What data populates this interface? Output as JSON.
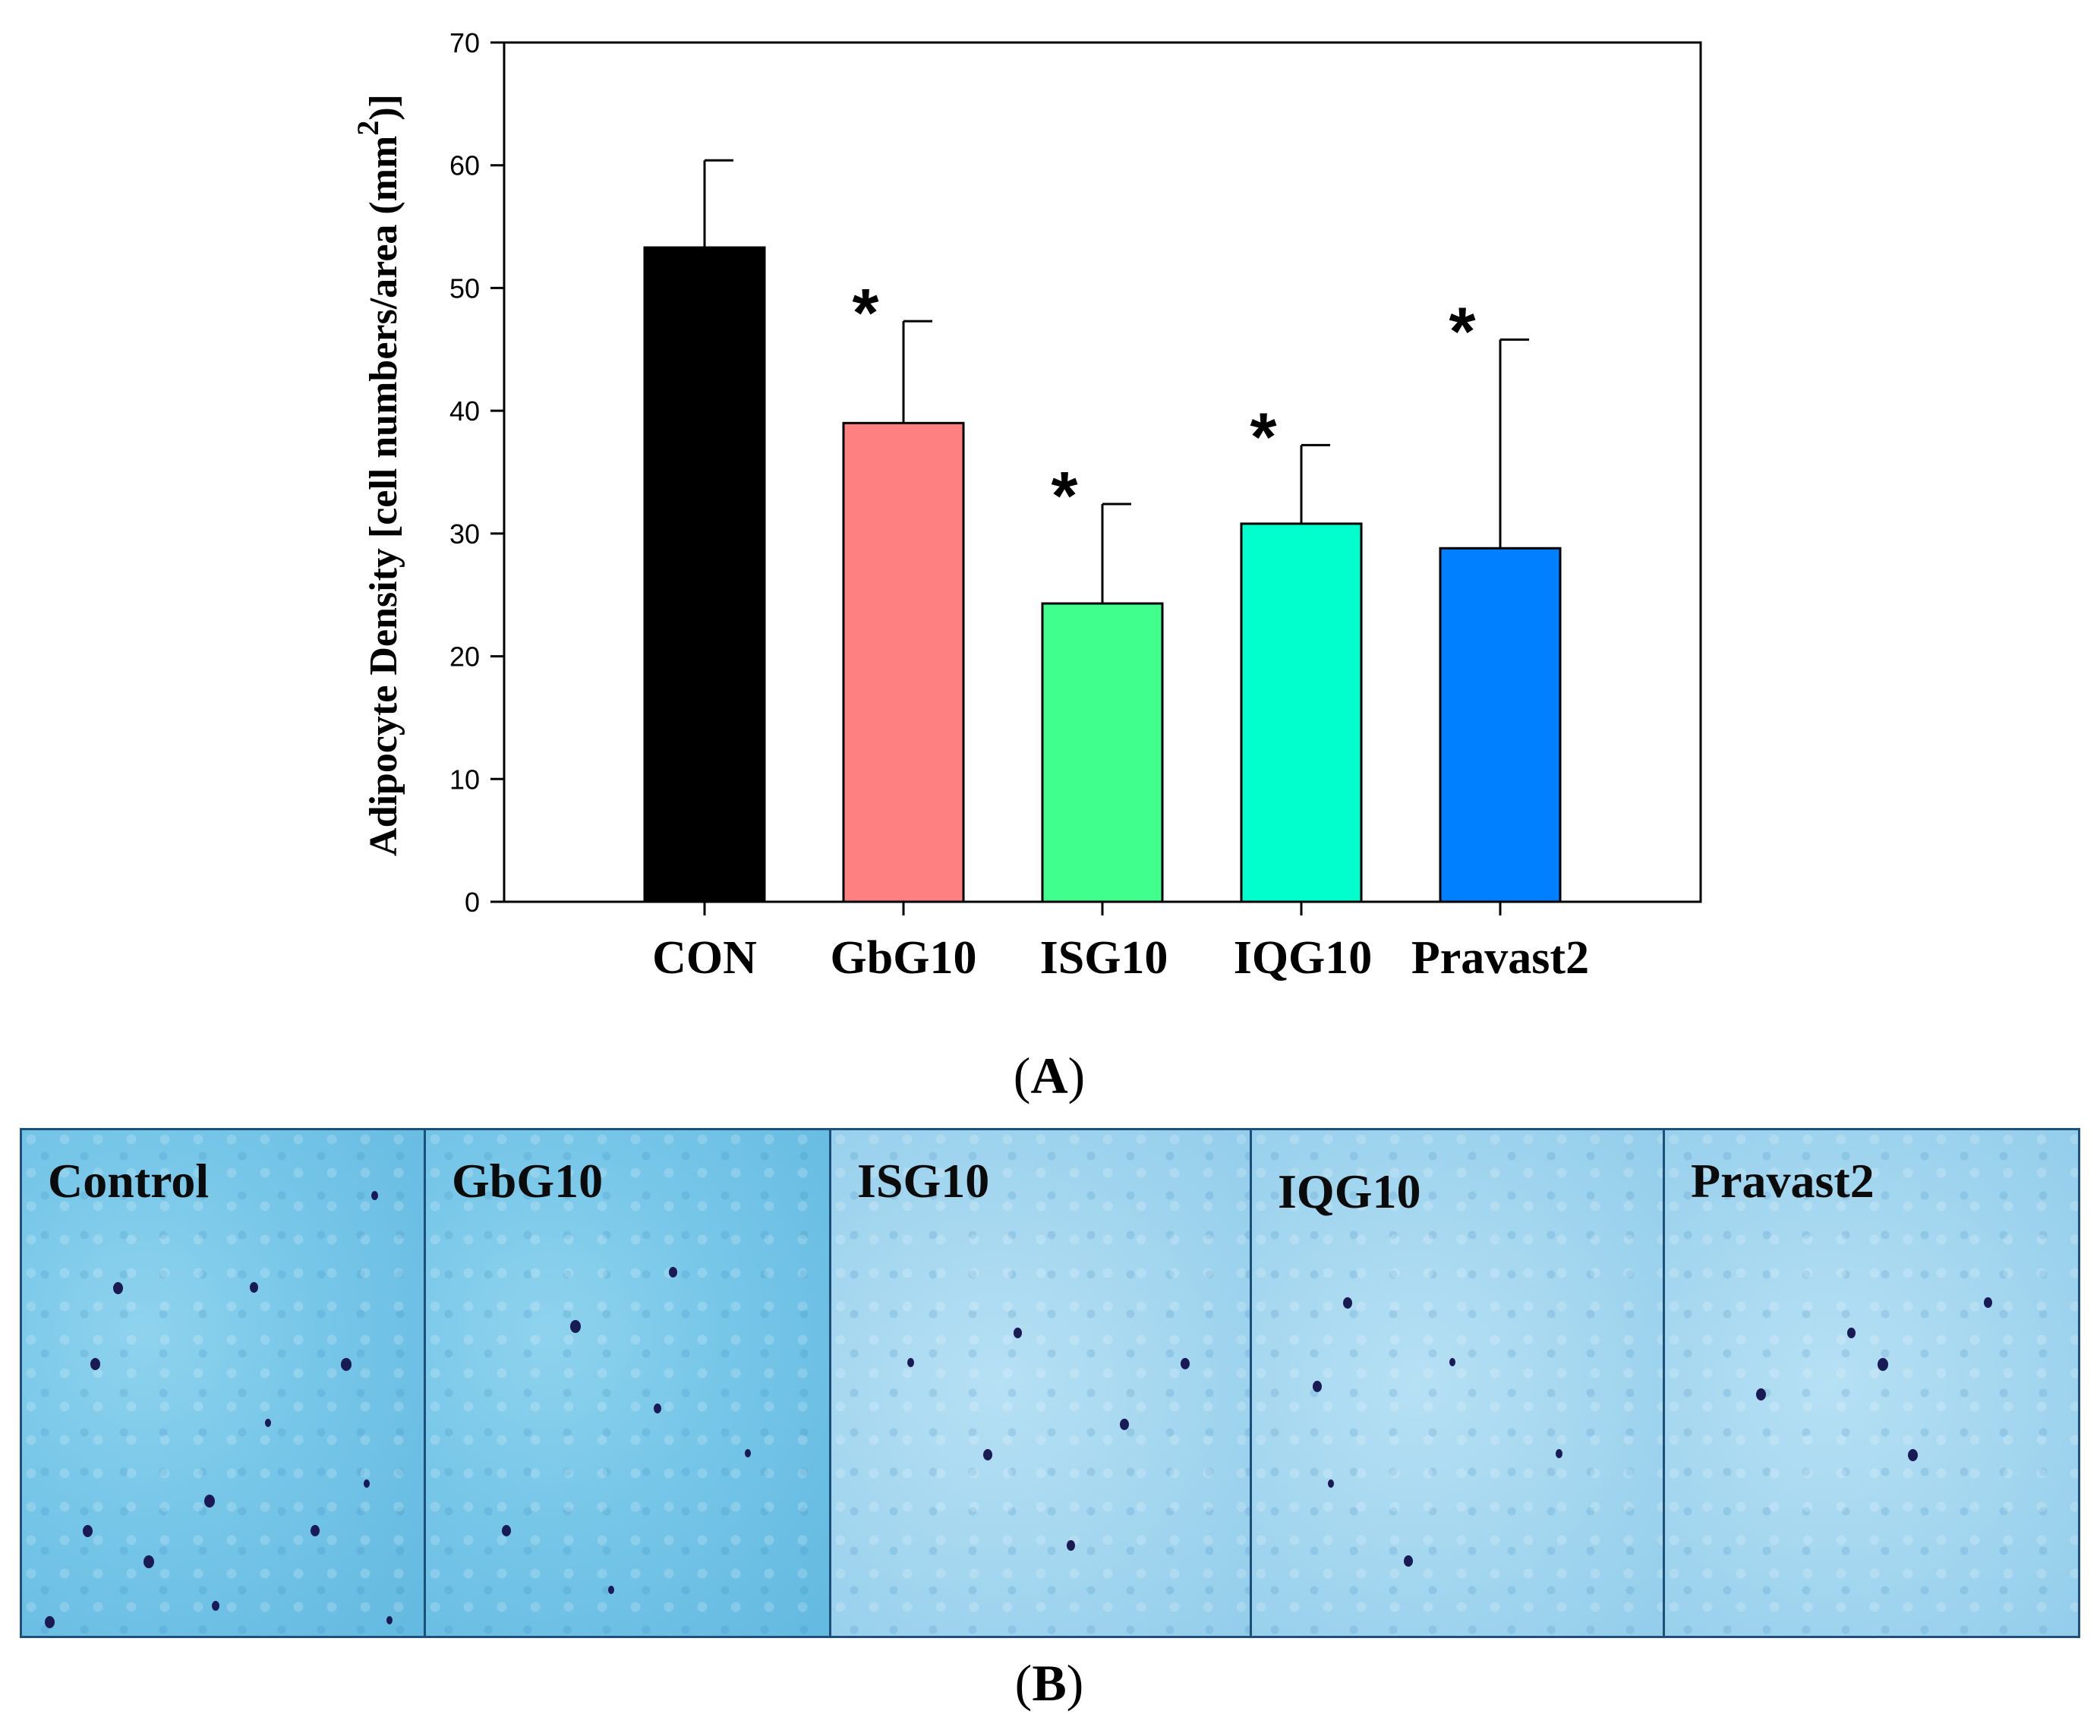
{
  "chart_data": {
    "type": "bar",
    "categories": [
      "CON",
      "GbG10",
      "ISG10",
      "IQG10",
      "Pravast2"
    ],
    "values": [
      53.3,
      39.0,
      24.3,
      30.8,
      28.8
    ],
    "errors": [
      7.1,
      8.3,
      8.1,
      6.4,
      17.0
    ],
    "significance": [
      "",
      "*",
      "*",
      "*",
      "*"
    ],
    "colors": [
      "#000000",
      "#ff8080",
      "#40ff8c",
      "#00ffcc",
      "#0080ff"
    ],
    "ylabel": "Adipocyte Density [cell numbers/area (mm",
    "ylabel_superscript": "2",
    "ylabel_suffix": ")]",
    "ylim": [
      0,
      70
    ],
    "yticks": [
      "0",
      "10",
      "20",
      "30",
      "40",
      "50",
      "60",
      "70"
    ],
    "panel_label": "A"
  },
  "micrographs": {
    "panel_label": "B",
    "panels": [
      {
        "title": "Control"
      },
      {
        "title": "GbG10"
      },
      {
        "title": "ISG10"
      },
      {
        "title": "IQG10"
      },
      {
        "title": "Pravast2"
      }
    ]
  }
}
